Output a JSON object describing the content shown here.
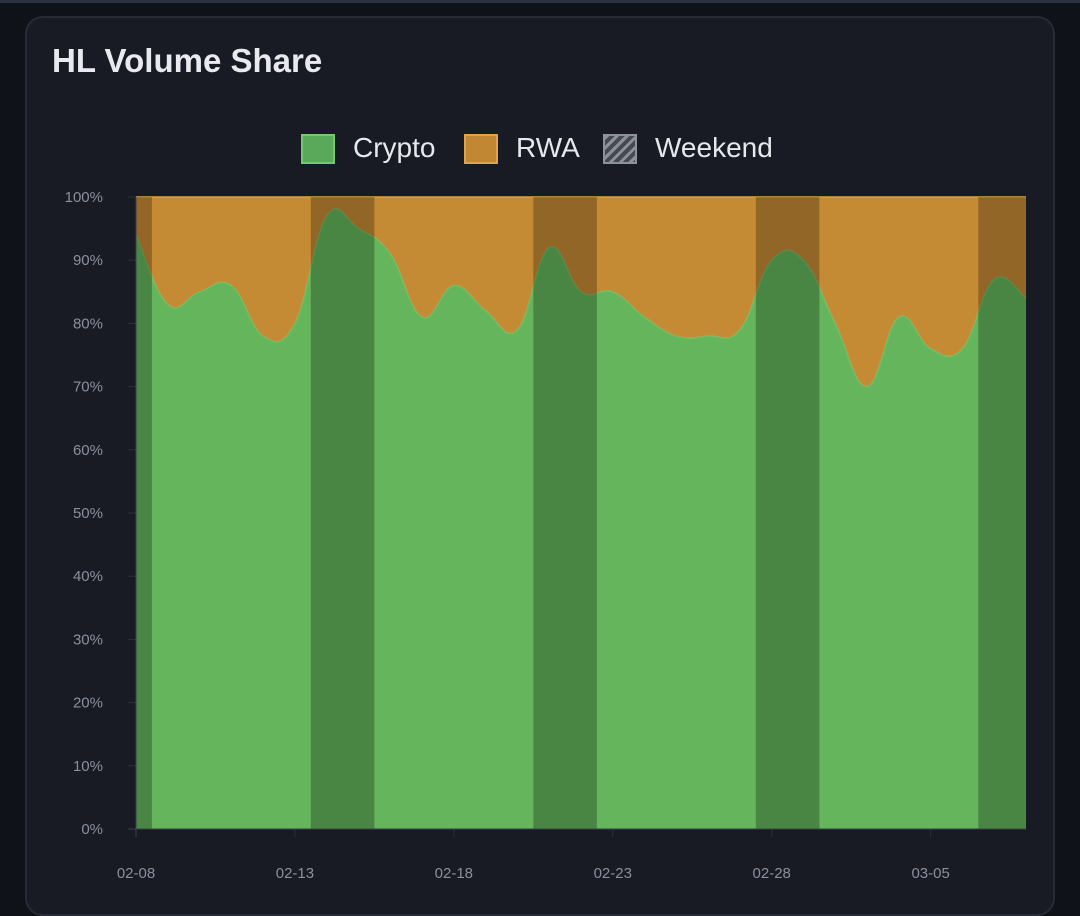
{
  "title": "HL Volume Share",
  "legend": {
    "crypto": "Crypto",
    "rwa": "RWA",
    "weekend": "Weekend"
  },
  "colors": {
    "crypto": "#64b55b",
    "crypto_border": "#7fd074",
    "rwa": "#c58a34",
    "rwa_border": "#e0a24a",
    "weekend_overlay": "#000000",
    "background": "#181b24"
  },
  "chart_data": {
    "type": "area",
    "stacked": true,
    "x": [
      "02-08",
      "02-09",
      "02-10",
      "02-11",
      "02-12",
      "02-13",
      "02-14",
      "02-15",
      "02-16",
      "02-17",
      "02-18",
      "02-19",
      "02-20",
      "02-21",
      "02-22",
      "02-23",
      "02-24",
      "02-25",
      "02-26",
      "02-27",
      "02-28",
      "03-01",
      "03-02",
      "03-03",
      "03-04",
      "03-05",
      "03-06",
      "03-07",
      "03-08"
    ],
    "x_ticks": [
      "02-08",
      "02-13",
      "02-18",
      "02-23",
      "02-28",
      "03-05"
    ],
    "series": [
      {
        "name": "Crypto",
        "values": [
          94,
          83,
          85,
          86,
          78,
          80,
          97,
          95,
          91,
          81,
          86,
          82,
          79,
          92,
          85,
          85,
          81,
          78,
          78,
          79,
          90,
          90,
          80,
          70,
          81,
          76,
          76,
          87,
          84
        ]
      },
      {
        "name": "RWA",
        "values": [
          6,
          17,
          15,
          14,
          22,
          20,
          3,
          5,
          9,
          19,
          14,
          18,
          21,
          8,
          15,
          15,
          19,
          22,
          22,
          21,
          10,
          10,
          20,
          30,
          19,
          24,
          24,
          13,
          16
        ]
      }
    ],
    "weekends": [
      [
        "02-08",
        "02-08"
      ],
      [
        "02-14",
        "02-15"
      ],
      [
        "02-21",
        "02-22"
      ],
      [
        "02-28",
        "03-01"
      ],
      [
        "03-07",
        "03-08"
      ]
    ],
    "ylim": [
      0,
      100
    ],
    "y_ticks": [
      "0%",
      "10%",
      "20%",
      "30%",
      "40%",
      "50%",
      "60%",
      "70%",
      "80%",
      "90%",
      "100%"
    ],
    "grid": true,
    "legend_position": "top-center"
  }
}
